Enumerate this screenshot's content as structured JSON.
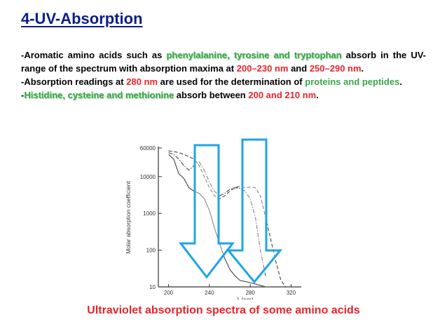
{
  "slide": {
    "title": "4-UV-Absorption",
    "p1": {
      "t1": "-Aromatic amino acids such as ",
      "amino": "phenylalanine, tyrosine and tryptophan",
      "t2": " absorb in the UV- range of the spectrum with absorption maxima at ",
      "range1": "200–230 nm",
      "t3": " and ",
      "range2": "250–290 nm",
      "t4": "."
    },
    "p2": {
      "t1": "-Absorption readings at ",
      "nm": "280 nm",
      "t2": " are used for the determination of ",
      "prot": "proteins and peptides",
      "t3": "."
    },
    "p3": {
      "t1": "-",
      "amino": "Histidine, cysteine and methionine",
      "t2": " absorb between ",
      "range": "200 and 210 nm",
      "t3": "."
    },
    "caption": "Ultraviolet  absorption  spectra  of some amino  acids"
  },
  "chart_data": {
    "type": "line",
    "ylabel": "Molar absorption coefficient",
    "xlabel": "λ (nm)",
    "y_ticks": [
      "60000",
      "10000",
      "1000",
      "100",
      "10"
    ],
    "x_ticks": [
      "200",
      "240",
      "280",
      "320"
    ],
    "y_scale": "log",
    "xlim": [
      190,
      330
    ],
    "ylim": [
      10,
      60000
    ],
    "series": [
      {
        "style": "solid",
        "x": [
          200,
          205,
          210,
          215,
          220,
          225,
          230,
          235,
          240,
          245,
          250,
          255,
          260,
          265,
          270,
          275,
          280,
          285,
          290,
          295,
          300
        ],
        "y": [
          40000,
          30000,
          12000,
          9000,
          5000,
          4000,
          3500,
          2500,
          1200,
          400,
          150,
          60,
          30,
          20,
          15,
          14,
          13,
          12,
          11,
          10,
          10
        ]
      },
      {
        "style": "dash-dot",
        "x": [
          200,
          205,
          210,
          215,
          220,
          225,
          230,
          235,
          240,
          245,
          250,
          255,
          260,
          265,
          270,
          275,
          280,
          285,
          290,
          295
        ],
        "y": [
          45000,
          40000,
          30000,
          20000,
          15000,
          20000,
          25000,
          15000,
          7000,
          4000,
          3000,
          3500,
          4500,
          5000,
          4800,
          4000,
          2500,
          800,
          100,
          20
        ]
      },
      {
        "style": "dashed",
        "x": [
          200,
          205,
          210,
          215,
          220,
          225,
          230,
          235,
          240,
          245,
          250,
          255,
          260,
          265,
          270,
          275,
          280,
          285,
          290,
          295,
          300,
          305,
          310,
          315
        ],
        "y": [
          50000,
          48000,
          45000,
          40000,
          35000,
          30000,
          20000,
          10000,
          5000,
          3000,
          2500,
          3000,
          4000,
          5000,
          5500,
          5000,
          5200,
          5000,
          3000,
          800,
          200,
          50,
          15,
          10
        ]
      }
    ]
  },
  "style": {
    "title_color": "#0b1e8c",
    "green": "#3aa54a",
    "red": "#e8242b",
    "arrow_fill": "#ffffff",
    "arrow_stroke": "#1ea5e6"
  }
}
